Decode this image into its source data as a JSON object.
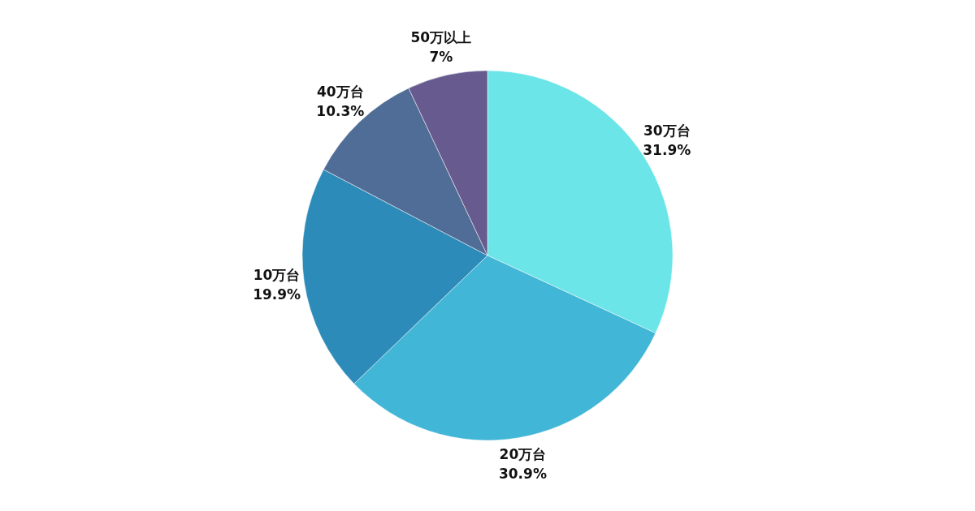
{
  "chart_data": {
    "type": "pie",
    "categories": [
      "30万台",
      "20万台",
      "10万台",
      "40万台",
      "50万以上"
    ],
    "values": [
      31.9,
      30.9,
      19.9,
      10.3,
      7
    ],
    "value_labels": [
      "31.9%",
      "30.9%",
      "19.9%",
      "10.3%",
      "7%"
    ],
    "colors": [
      "#6be5e8",
      "#42b6d6",
      "#2d8bba",
      "#4f6d96",
      "#665a8e"
    ]
  }
}
